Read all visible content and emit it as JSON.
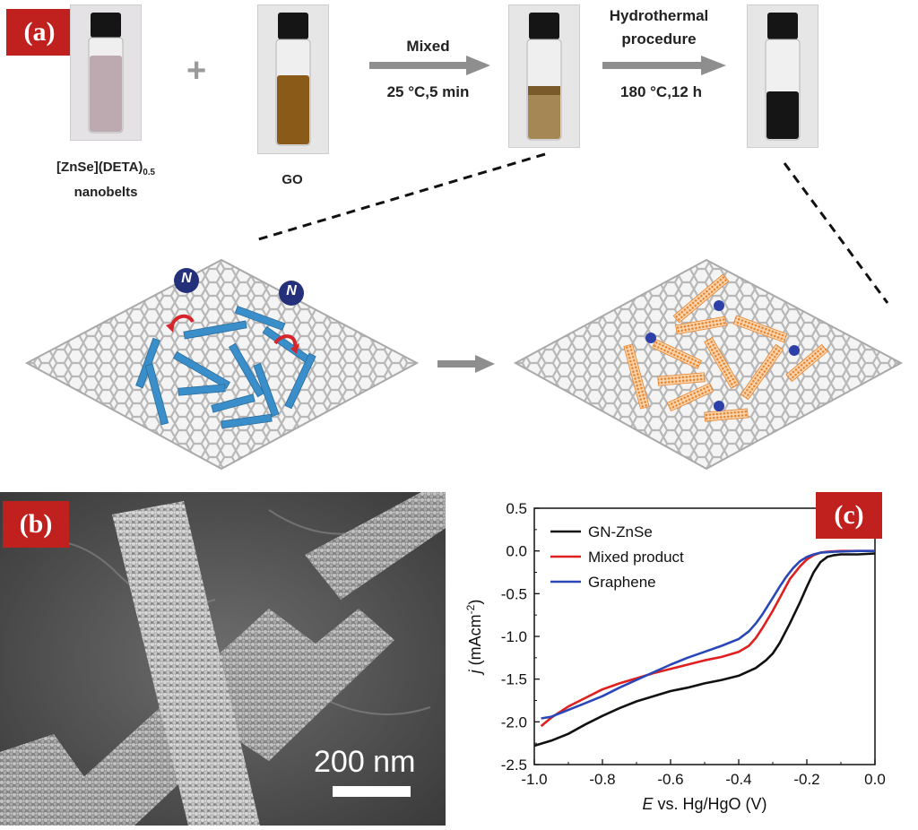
{
  "panel_a": {
    "label": "(a)",
    "vial1_caption_main": "[ZnSe](DETA)",
    "vial1_caption_sub": "0.5",
    "vial1_caption_line2": "nanobelts",
    "plus": "+",
    "vial2_caption": "GO",
    "step1_line1": "Mixed",
    "step1_line2": "25 °C,5 min",
    "step2_line1": "Hydrothermal",
    "step2_line2": "procedure",
    "step2_line3": "180 °C,12 h",
    "n_label": "N",
    "colors": {
      "nanobelt": "#3a8fca",
      "znse_belt": "#f0a25a",
      "lattice": "#c9c9c9",
      "n_circle": "#24317a",
      "arrow_red": "#d7262b",
      "n_dot": "#2d3fa8"
    }
  },
  "panel_b": {
    "label": "(b)",
    "scale_text": "200 nm"
  },
  "panel_c": {
    "label": "(c)",
    "chart_data": {
      "type": "line",
      "xlabel_italic": "E",
      "xlabel_rest": " vs. Hg/HgO (V)",
      "ylabel_italic": "j",
      "ylabel_rest": " (mAcm",
      "ylabel_sup": "-2",
      "ylabel_close": ")",
      "xlim": [
        -1.0,
        0.0
      ],
      "ylim": [
        -2.5,
        0.5
      ],
      "xticks": [
        -1.0,
        -0.8,
        -0.6,
        -0.4,
        -0.2,
        0.0
      ],
      "xtick_labels": [
        "-1.0",
        "-0.8",
        "-0.6",
        "-0.4",
        "-0.2",
        "0.0"
      ],
      "yticks": [
        0.5,
        0.0,
        -0.5,
        -1.0,
        -1.5,
        -2.0,
        -2.5
      ],
      "ytick_labels": [
        "0.5",
        "0.0",
        "-0.5",
        "-1.0",
        "-1.5",
        "-2.0",
        "-2.5"
      ],
      "legend_position": "top-left",
      "series": [
        {
          "name": "GN-ZnSe",
          "color": "#111111",
          "x": [
            -1.0,
            -0.95,
            -0.9,
            -0.85,
            -0.8,
            -0.75,
            -0.7,
            -0.65,
            -0.6,
            -0.55,
            -0.5,
            -0.45,
            -0.4,
            -0.35,
            -0.32,
            -0.3,
            -0.28,
            -0.25,
            -0.22,
            -0.2,
            -0.18,
            -0.16,
            -0.14,
            -0.12,
            -0.1,
            -0.05,
            0.0
          ],
          "y": [
            -2.28,
            -2.22,
            -2.14,
            -2.03,
            -1.93,
            -1.84,
            -1.76,
            -1.7,
            -1.64,
            -1.6,
            -1.55,
            -1.51,
            -1.46,
            -1.37,
            -1.28,
            -1.2,
            -1.08,
            -0.85,
            -0.6,
            -0.42,
            -0.25,
            -0.13,
            -0.07,
            -0.05,
            -0.04,
            -0.04,
            -0.03
          ]
        },
        {
          "name": "Mixed product",
          "color": "#e02020",
          "x": [
            -0.98,
            -0.95,
            -0.9,
            -0.85,
            -0.8,
            -0.75,
            -0.7,
            -0.65,
            -0.6,
            -0.55,
            -0.5,
            -0.45,
            -0.4,
            -0.37,
            -0.35,
            -0.33,
            -0.3,
            -0.27,
            -0.25,
            -0.22,
            -0.2,
            -0.18,
            -0.16,
            -0.14,
            -0.1,
            -0.05,
            0.0
          ],
          "y": [
            -2.05,
            -1.95,
            -1.82,
            -1.72,
            -1.62,
            -1.55,
            -1.49,
            -1.43,
            -1.38,
            -1.33,
            -1.28,
            -1.24,
            -1.18,
            -1.11,
            -1.02,
            -0.9,
            -0.7,
            -0.48,
            -0.33,
            -0.18,
            -0.1,
            -0.05,
            -0.02,
            -0.01,
            0.0,
            0.0,
            0.0
          ]
        },
        {
          "name": "Graphene",
          "color": "#2a47b8",
          "x": [
            -0.98,
            -0.95,
            -0.9,
            -0.85,
            -0.8,
            -0.75,
            -0.7,
            -0.65,
            -0.6,
            -0.55,
            -0.5,
            -0.45,
            -0.4,
            -0.37,
            -0.35,
            -0.33,
            -0.3,
            -0.28,
            -0.26,
            -0.24,
            -0.22,
            -0.2,
            -0.18,
            -0.16,
            -0.12,
            -0.05,
            0.0
          ],
          "y": [
            -1.96,
            -1.94,
            -1.86,
            -1.78,
            -1.7,
            -1.6,
            -1.51,
            -1.42,
            -1.33,
            -1.25,
            -1.18,
            -1.11,
            -1.03,
            -0.94,
            -0.85,
            -0.74,
            -0.55,
            -0.42,
            -0.3,
            -0.2,
            -0.12,
            -0.07,
            -0.04,
            -0.02,
            -0.01,
            0.0,
            0.0
          ]
        }
      ]
    }
  }
}
